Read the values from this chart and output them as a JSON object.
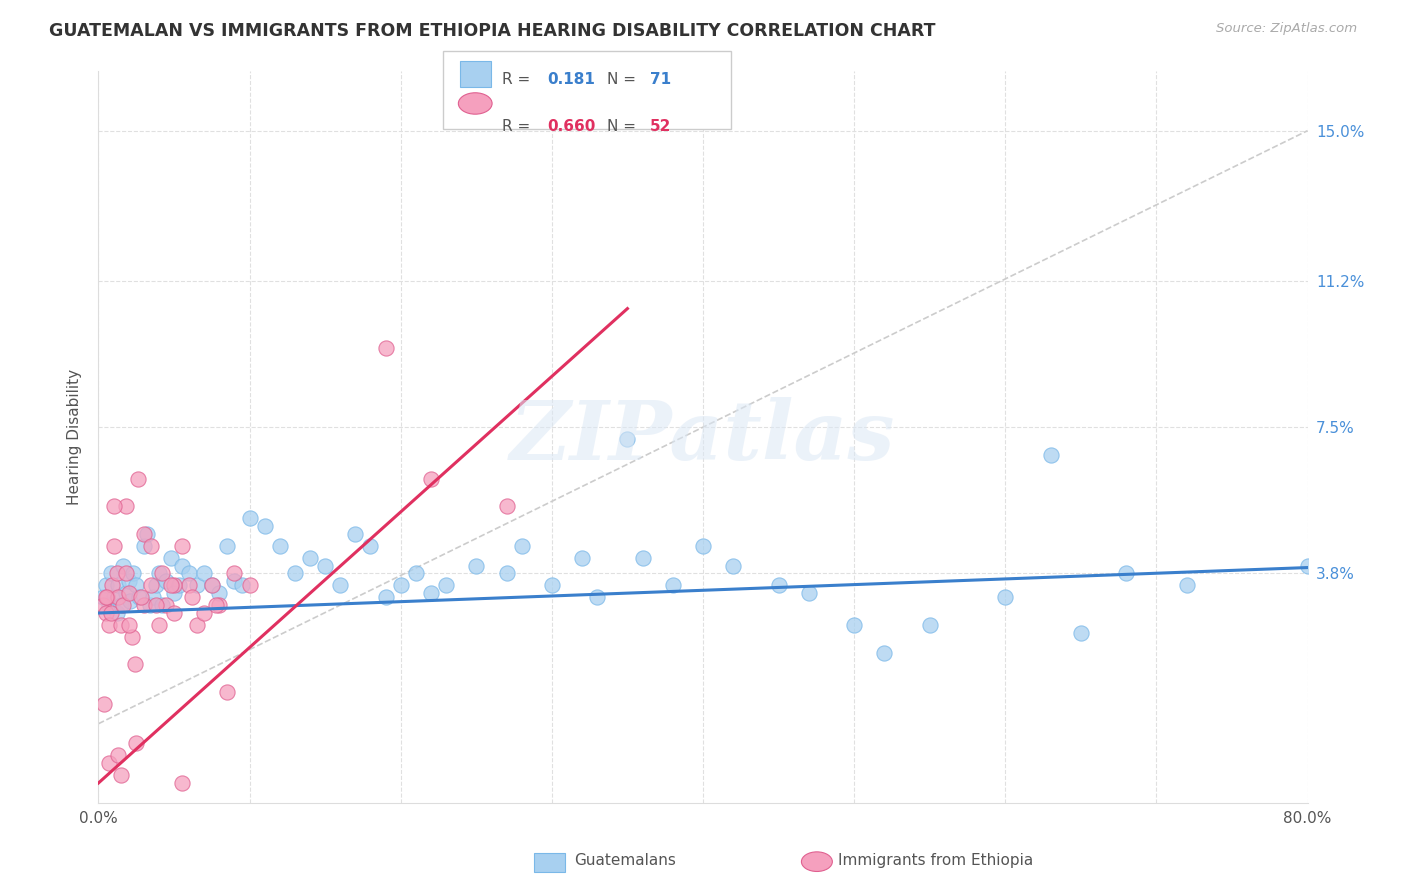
{
  "title": "GUATEMALAN VS IMMIGRANTS FROM ETHIOPIA HEARING DISABILITY CORRELATION CHART",
  "source": "Source: ZipAtlas.com",
  "ylabel": "Hearing Disability",
  "watermark": "ZIPatlas",
  "xlim": [
    0.0,
    80.0
  ],
  "ylim": [
    -2.0,
    16.5
  ],
  "ytick_vals": [
    0.0,
    3.8,
    7.5,
    11.2,
    15.0
  ],
  "ytick_labels": [
    "",
    "3.8%",
    "7.5%",
    "11.2%",
    "15.0%"
  ],
  "xtick_vals": [
    0.0,
    10.0,
    20.0,
    30.0,
    40.0,
    50.0,
    60.0,
    70.0,
    80.0
  ],
  "xtick_labels": [
    "0.0%",
    "",
    "",
    "",
    "",
    "",
    "",
    "",
    "80.0%"
  ],
  "legend1_label": "Guatemalans",
  "legend2_label": "Immigrants from Ethiopia",
  "R1": 0.181,
  "N1": 71,
  "R2": 0.66,
  "N2": 52,
  "color1": "#a8d0f0",
  "color2": "#f5a0be",
  "trendline1_color": "#3a7fcc",
  "trendline2_color": "#e03060",
  "refline_color": "#cccccc",
  "blue_trend_x": [
    0.0,
    80.0
  ],
  "blue_trend_y": [
    2.8,
    3.95
  ],
  "pink_trend_x": [
    0.0,
    35.0
  ],
  "pink_trend_y": [
    -1.5,
    10.5
  ],
  "ref_line_x": [
    0.0,
    80.0
  ],
  "ref_line_y": [
    0.0,
    15.0
  ],
  "blue_scatter": [
    [
      0.3,
      3.2
    ],
    [
      0.5,
      3.5
    ],
    [
      0.7,
      3.0
    ],
    [
      0.8,
      3.8
    ],
    [
      1.0,
      3.2
    ],
    [
      1.2,
      2.8
    ],
    [
      1.3,
      3.5
    ],
    [
      1.5,
      3.0
    ],
    [
      1.6,
      4.0
    ],
    [
      1.8,
      3.3
    ],
    [
      2.0,
      3.6
    ],
    [
      2.1,
      3.1
    ],
    [
      2.3,
      3.8
    ],
    [
      2.5,
      3.5
    ],
    [
      2.7,
      3.2
    ],
    [
      3.0,
      4.5
    ],
    [
      3.2,
      4.8
    ],
    [
      3.4,
      3.0
    ],
    [
      3.6,
      3.2
    ],
    [
      3.8,
      3.5
    ],
    [
      4.0,
      3.8
    ],
    [
      4.2,
      3.0
    ],
    [
      4.5,
      3.6
    ],
    [
      4.8,
      4.2
    ],
    [
      5.0,
      3.3
    ],
    [
      5.3,
      3.5
    ],
    [
      5.5,
      4.0
    ],
    [
      6.0,
      3.8
    ],
    [
      6.5,
      3.5
    ],
    [
      7.0,
      3.8
    ],
    [
      7.5,
      3.5
    ],
    [
      8.0,
      3.3
    ],
    [
      8.5,
      4.5
    ],
    [
      9.0,
      3.6
    ],
    [
      9.5,
      3.5
    ],
    [
      10.0,
      5.2
    ],
    [
      11.0,
      5.0
    ],
    [
      12.0,
      4.5
    ],
    [
      13.0,
      3.8
    ],
    [
      14.0,
      4.2
    ],
    [
      15.0,
      4.0
    ],
    [
      16.0,
      3.5
    ],
    [
      17.0,
      4.8
    ],
    [
      18.0,
      4.5
    ],
    [
      19.0,
      3.2
    ],
    [
      20.0,
      3.5
    ],
    [
      21.0,
      3.8
    ],
    [
      22.0,
      3.3
    ],
    [
      23.0,
      3.5
    ],
    [
      25.0,
      4.0
    ],
    [
      27.0,
      3.8
    ],
    [
      28.0,
      4.5
    ],
    [
      30.0,
      3.5
    ],
    [
      32.0,
      4.2
    ],
    [
      33.0,
      3.2
    ],
    [
      35.0,
      7.2
    ],
    [
      36.0,
      4.2
    ],
    [
      38.0,
      3.5
    ],
    [
      40.0,
      4.5
    ],
    [
      42.0,
      4.0
    ],
    [
      45.0,
      3.5
    ],
    [
      47.0,
      3.3
    ],
    [
      50.0,
      2.5
    ],
    [
      52.0,
      1.8
    ],
    [
      55.0,
      2.5
    ],
    [
      60.0,
      3.2
    ],
    [
      63.0,
      6.8
    ],
    [
      65.0,
      2.3
    ],
    [
      68.0,
      3.8
    ],
    [
      72.0,
      3.5
    ],
    [
      80.0,
      4.0
    ]
  ],
  "pink_scatter": [
    [
      0.3,
      3.0
    ],
    [
      0.5,
      2.8
    ],
    [
      0.6,
      3.2
    ],
    [
      0.7,
      2.5
    ],
    [
      0.8,
      2.8
    ],
    [
      0.9,
      3.5
    ],
    [
      1.0,
      4.5
    ],
    [
      1.2,
      3.8
    ],
    [
      1.3,
      3.2
    ],
    [
      1.5,
      2.5
    ],
    [
      1.6,
      3.0
    ],
    [
      1.8,
      5.5
    ],
    [
      2.0,
      3.3
    ],
    [
      2.2,
      2.2
    ],
    [
      2.4,
      1.5
    ],
    [
      2.6,
      6.2
    ],
    [
      3.0,
      3.0
    ],
    [
      3.5,
      3.5
    ],
    [
      4.0,
      2.5
    ],
    [
      4.5,
      3.0
    ],
    [
      5.0,
      2.8
    ],
    [
      5.5,
      4.5
    ],
    [
      6.0,
      3.5
    ],
    [
      6.5,
      2.5
    ],
    [
      7.0,
      2.8
    ],
    [
      7.5,
      3.5
    ],
    [
      8.0,
      3.0
    ],
    [
      8.5,
      0.8
    ],
    [
      0.7,
      -1.0
    ],
    [
      1.5,
      -1.3
    ],
    [
      2.5,
      -0.5
    ],
    [
      3.0,
      4.8
    ],
    [
      3.5,
      4.5
    ],
    [
      4.2,
      3.8
    ],
    [
      5.0,
      3.5
    ],
    [
      6.2,
      3.2
    ],
    [
      7.8,
      3.0
    ],
    [
      9.0,
      3.8
    ],
    [
      10.0,
      3.5
    ],
    [
      0.5,
      3.2
    ],
    [
      1.0,
      5.5
    ],
    [
      19.0,
      9.5
    ],
    [
      22.0,
      6.2
    ],
    [
      27.0,
      5.5
    ],
    [
      5.5,
      -1.5
    ],
    [
      1.3,
      -0.8
    ],
    [
      0.4,
      0.5
    ],
    [
      2.8,
      3.2
    ],
    [
      1.8,
      3.8
    ],
    [
      2.0,
      2.5
    ],
    [
      4.8,
      3.5
    ],
    [
      3.8,
      3.0
    ]
  ]
}
